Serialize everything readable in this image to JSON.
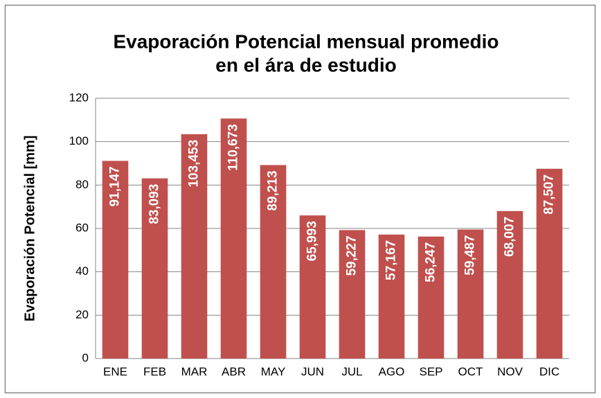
{
  "chart_data": {
    "type": "bar",
    "title": [
      "Evaporación Potencial mensual promedio",
      "en el ára de estudio"
    ],
    "y_label": "Evaporación Potencial [mm]",
    "categories": [
      "ENE",
      "FEB",
      "MAR",
      "ABR",
      "MAY",
      "JUN",
      "JUL",
      "AGO",
      "SEP",
      "OCT",
      "NOV",
      "DIC"
    ],
    "values": [
      91.147,
      83.093,
      103.453,
      110.673,
      89.213,
      65.993,
      59.227,
      57.167,
      56.247,
      59.487,
      68.007,
      87.507
    ],
    "value_labels": [
      "91,147",
      "83,093",
      "103,453",
      "110,673",
      "89,213",
      "65,993",
      "59,227",
      "57,167",
      "56,247",
      "59,487",
      "68,007",
      "87,507"
    ],
    "color": "#c0504d",
    "ylim": [
      0,
      120
    ],
    "yticks": [
      0,
      20,
      40,
      60,
      80,
      100,
      120
    ],
    "grid": true
  }
}
